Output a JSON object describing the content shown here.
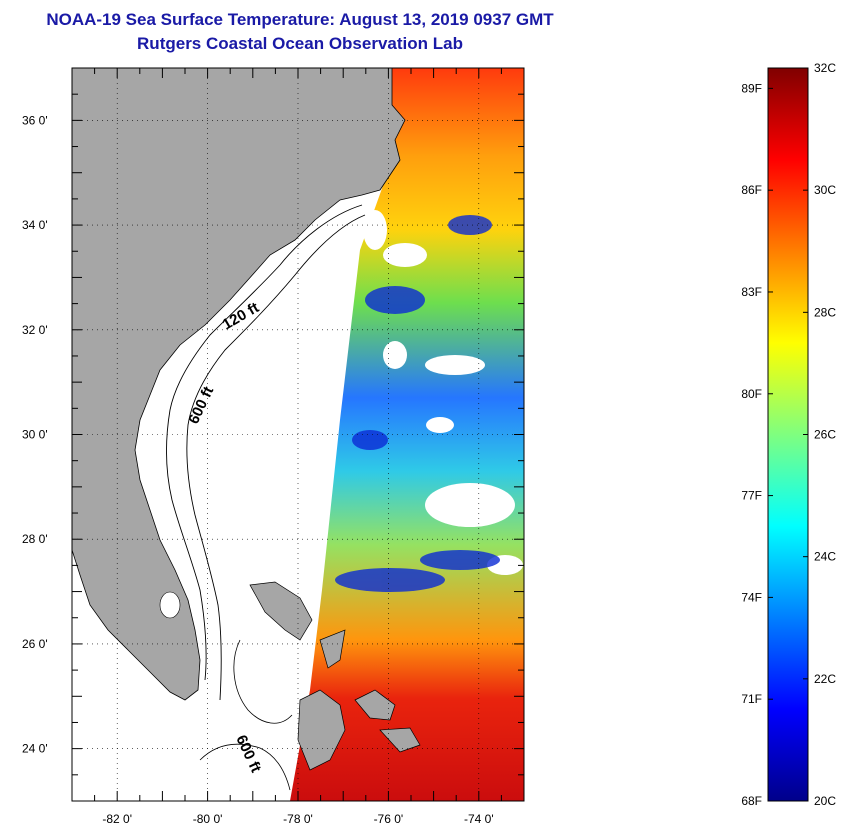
{
  "title": {
    "line1": "NOAA-19 Sea Surface Temperature:  August 13, 2019 0937 GMT",
    "line2": "Rutgers Coastal Ocean Observation Lab"
  },
  "map": {
    "lat_range": [
      23.0,
      37.0
    ],
    "lon_range": [
      -83.0,
      -73.0
    ],
    "lat_ticks": [
      "36 0'",
      "34 0'",
      "32 0'",
      "30 0'",
      "28 0'",
      "26 0'",
      "24 0'"
    ],
    "lat_values": [
      36,
      34,
      32,
      30,
      28,
      26,
      24
    ],
    "lon_ticks": [
      "-82 0'",
      "-80 0'",
      "-78 0'",
      "-76 0'",
      "-74 0'"
    ],
    "lon_values": [
      -82,
      -80,
      -78,
      -76,
      -74
    ],
    "contour_labels": [
      "120 ft",
      "600 ft",
      "600 ft"
    ],
    "colors": {
      "land": "#a6a6a6",
      "water_nodata": "#ffffff",
      "frame": "#000000"
    }
  },
  "colorbar": {
    "fahrenheit_labels": [
      "89F",
      "86F",
      "83F",
      "80F",
      "77F",
      "74F",
      "71F",
      "68F"
    ],
    "fahrenheit_values": [
      89,
      86,
      83,
      80,
      77,
      74,
      71,
      68
    ],
    "celsius_labels": [
      "32C",
      "30C",
      "28C",
      "26C",
      "24C",
      "22C",
      "20C"
    ],
    "celsius_values": [
      32,
      30,
      28,
      26,
      24,
      22,
      20
    ],
    "range_c": [
      20,
      32
    ],
    "gradient": [
      "#00008a",
      "#0000ff",
      "#007fff",
      "#00ffff",
      "#7fff7f",
      "#ffff00",
      "#ff7f00",
      "#ff0000",
      "#800000"
    ]
  }
}
